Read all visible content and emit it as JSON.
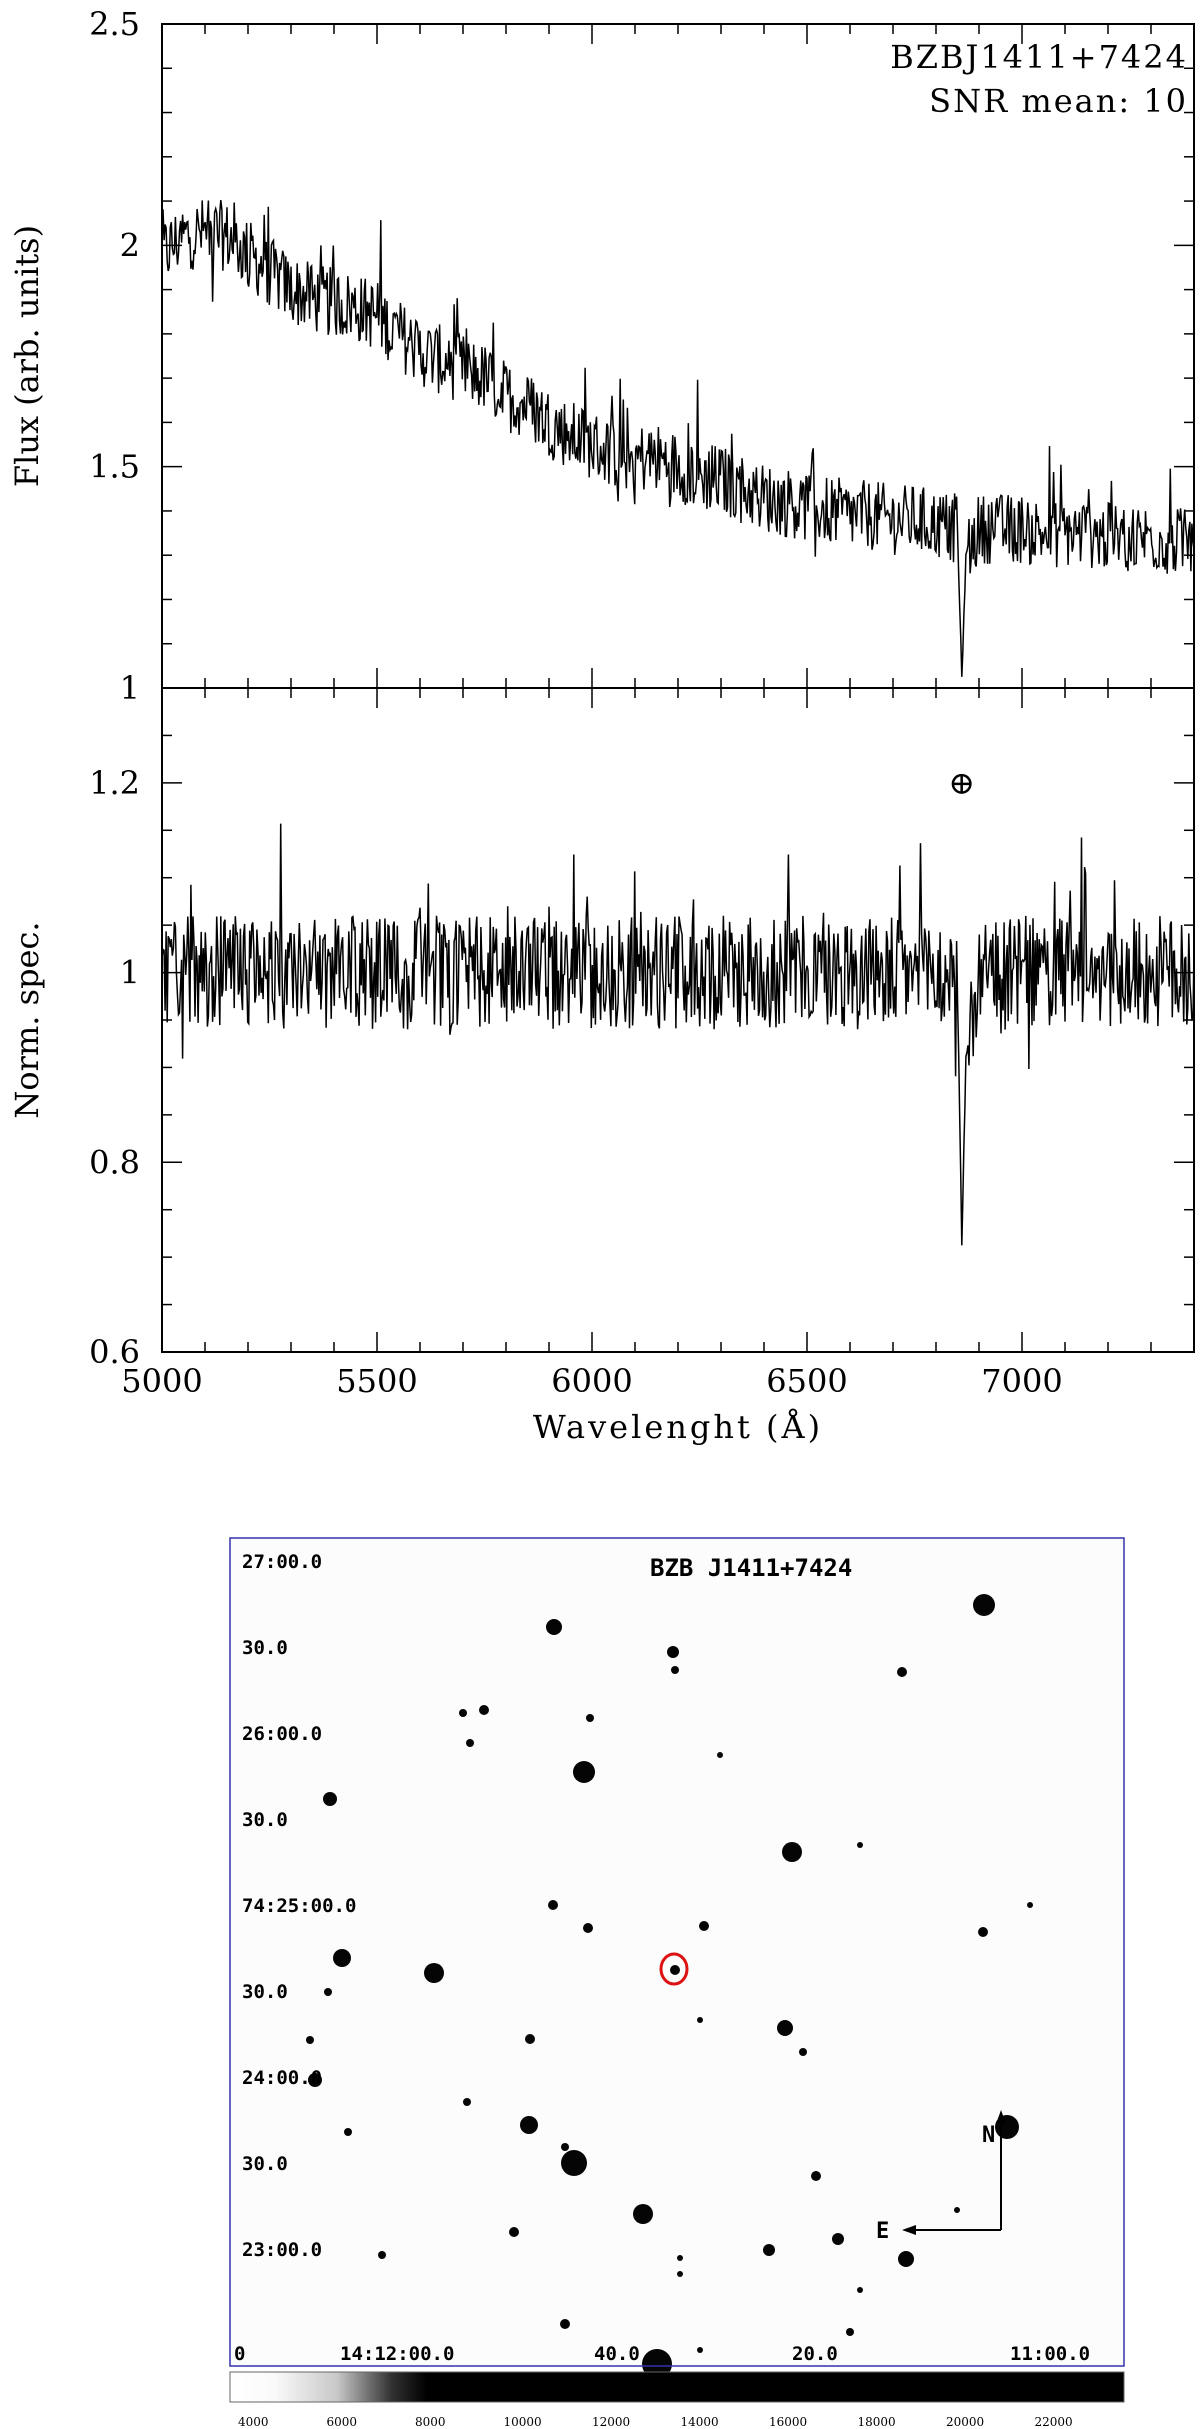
{
  "chart_data": [
    {
      "type": "line",
      "panel": "top",
      "title": "BZBJ1411+7424",
      "annotation": "SNR mean: 10",
      "xlabel": "",
      "ylabel": "Flux (arb. units)",
      "xlim": [
        5000,
        7400
      ],
      "ylim": [
        1,
        2.5
      ],
      "x_ticks": [
        "5000",
        "5500",
        "6000",
        "6500",
        "7000"
      ],
      "y_ticks": [
        "1",
        "1.5",
        "2",
        "2.5"
      ],
      "y_tick_values": [
        1,
        1.5,
        2,
        2.5
      ],
      "series": [
        {
          "x": [
            5000,
            5050,
            5100,
            5150,
            5200,
            5250,
            5300,
            5350,
            5400,
            5450,
            5500,
            5550,
            5600,
            5650,
            5700,
            5750,
            5800,
            5850,
            5900,
            5950,
            6000,
            6050,
            6100,
            6150,
            6200,
            6250,
            6300,
            6350,
            6400,
            6450,
            6500,
            6550,
            6600,
            6650,
            6700,
            6750,
            6800,
            6850,
            6860,
            6870,
            6900,
            6950,
            7000,
            7050,
            7100,
            7150,
            7200,
            7250,
            7300,
            7350,
            7400
          ],
          "y": [
            1.98,
            2.02,
            2.03,
            2.02,
            1.98,
            1.94,
            1.9,
            1.88,
            1.87,
            1.86,
            1.84,
            1.8,
            1.76,
            1.74,
            1.72,
            1.7,
            1.66,
            1.64,
            1.6,
            1.57,
            1.55,
            1.53,
            1.52,
            1.52,
            1.5,
            1.48,
            1.47,
            1.45,
            1.43,
            1.42,
            1.41,
            1.4,
            1.39,
            1.39,
            1.38,
            1.38,
            1.37,
            1.36,
            1.02,
            1.3,
            1.36,
            1.36,
            1.36,
            1.35,
            1.35,
            1.35,
            1.34,
            1.34,
            1.34,
            1.33,
            1.33
          ]
        }
      ]
    },
    {
      "type": "line",
      "panel": "bottom",
      "symbol": "⊕",
      "symbol_x": 6860,
      "symbol_y": 1.2,
      "xlabel": "Wavelenght (Å)",
      "ylabel": "Norm. spec.",
      "xlim": [
        5000,
        7400
      ],
      "ylim": [
        0.6,
        1.3
      ],
      "x_ticks": [
        "5000",
        "5500",
        "6000",
        "6500",
        "7000"
      ],
      "x_tick_values": [
        5000,
        5500,
        6000,
        6500,
        7000
      ],
      "y_ticks": [
        "0.6",
        "0.8",
        "1",
        "1.2"
      ],
      "y_tick_values": [
        0.6,
        0.8,
        1.0,
        1.2
      ],
      "series": [
        {
          "x": [
            5000,
            5100,
            5200,
            5300,
            5400,
            5500,
            5600,
            5700,
            5800,
            5900,
            6000,
            6100,
            6200,
            6300,
            6400,
            6500,
            6600,
            6700,
            6800,
            6850,
            6860,
            6870,
            6900,
            7000,
            7100,
            7200,
            7300,
            7400
          ],
          "y": [
            1.0,
            1.0,
            1.0,
            1.0,
            1.0,
            1.0,
            1.0,
            1.0,
            1.0,
            1.0,
            1.0,
            1.0,
            1.0,
            1.0,
            1.0,
            1.0,
            1.0,
            1.0,
            1.0,
            0.98,
            0.71,
            0.92,
            0.99,
            1.0,
            1.0,
            1.0,
            1.0,
            1.0
          ]
        }
      ]
    }
  ],
  "finder": {
    "title": "BZB J1411+7424",
    "dec_labels": [
      "27:00.0",
      "30.0",
      "26:00.0",
      "30.0",
      "74:25:00.0",
      "30.0",
      "24:00.0",
      "30.0",
      "23:00.0"
    ],
    "ra_labels": [
      "0",
      "14:12:00.0",
      "40.0",
      "20.0",
      "11:00.0"
    ],
    "compass_n": "N",
    "compass_e": "E",
    "colorbar_ticks": [
      "4000",
      "6000",
      "8000",
      "10000",
      "12000",
      "14000",
      "16000",
      "18000",
      "20000",
      "22000"
    ],
    "target_marker_color": "#dd1111",
    "frame_color": "#3333aa"
  }
}
